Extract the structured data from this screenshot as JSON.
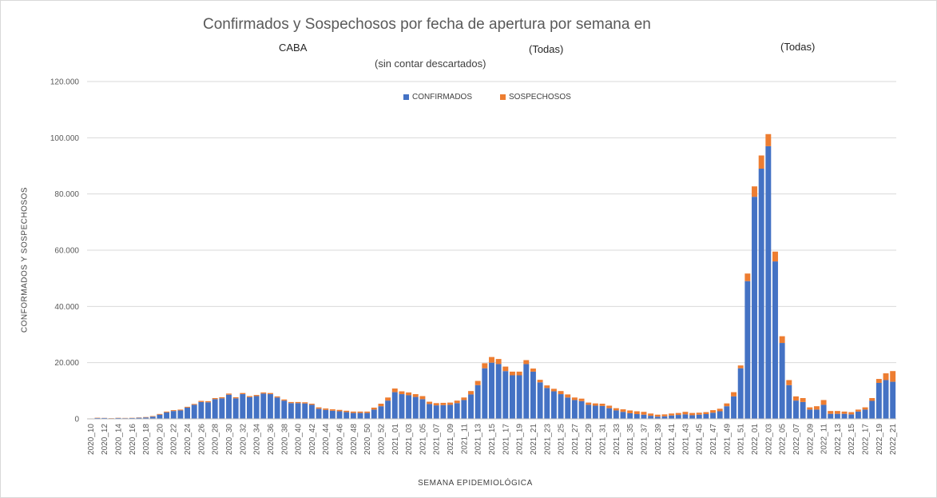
{
  "chart_data": {
    "type": "bar",
    "stacked": true,
    "title": "Confirmados y Sospechosos por fecha de apertura por semana en",
    "subtitles": [
      "CABA",
      "(sin contar descartados)",
      "(Todas)",
      "(Todas)"
    ],
    "xlabel": "SEMANA  EPIDEMIOLÓGICA",
    "ylabel": "CONFORMADOS  Y SOSPECHOSOS",
    "ylim": [
      0,
      120000
    ],
    "yticks": [
      "0",
      "20.000",
      "40.000",
      "60.000",
      "80.000",
      "100.000",
      "120.000"
    ],
    "grid": true,
    "legend_position": "top",
    "colors": {
      "confirmados": "#4472c4",
      "sospechosos": "#ed7d31"
    },
    "categories": [
      "2020_10",
      "2020_11",
      "2020_12",
      "2020_13",
      "2020_14",
      "2020_15",
      "2020_16",
      "2020_17",
      "2020_18",
      "2020_19",
      "2020_20",
      "2020_21",
      "2020_22",
      "2020_23",
      "2020_24",
      "2020_25",
      "2020_26",
      "2020_27",
      "2020_28",
      "2020_29",
      "2020_30",
      "2020_31",
      "2020_32",
      "2020_33",
      "2020_34",
      "2020_35",
      "2020_36",
      "2020_37",
      "2020_38",
      "2020_39",
      "2020_40",
      "2020_41",
      "2020_42",
      "2020_43",
      "2020_44",
      "2020_45",
      "2020_46",
      "2020_47",
      "2020_48",
      "2020_49",
      "2020_50",
      "2020_51",
      "2020_52",
      "2020_53",
      "2021_01",
      "2021_02",
      "2021_03",
      "2021_04",
      "2021_05",
      "2021_06",
      "2021_07",
      "2021_08",
      "2021_09",
      "2021_10",
      "2021_11",
      "2021_12",
      "2021_13",
      "2021_14",
      "2021_15",
      "2021_16",
      "2021_17",
      "2021_18",
      "2021_19",
      "2021_20",
      "2021_21",
      "2021_22",
      "2021_23",
      "2021_24",
      "2021_25",
      "2021_26",
      "2021_27",
      "2021_28",
      "2021_29",
      "2021_30",
      "2021_31",
      "2021_32",
      "2021_33",
      "2021_34",
      "2021_35",
      "2021_36",
      "2021_37",
      "2021_38",
      "2021_39",
      "2021_40",
      "2021_41",
      "2021_42",
      "2021_43",
      "2021_44",
      "2021_45",
      "2021_46",
      "2021_47",
      "2021_48",
      "2021_49",
      "2021_50",
      "2021_51",
      "2021_52",
      "2022_01",
      "2022_02",
      "2022_03",
      "2022_04",
      "2022_05",
      "2022_06",
      "2022_07",
      "2022_08",
      "2022_09",
      "2022_10",
      "2022_11",
      "2022_12",
      "2022_13",
      "2022_14",
      "2022_15",
      "2022_16",
      "2022_17",
      "2022_18",
      "2022_19",
      "2022_20",
      "2022_21"
    ],
    "x_tick_labels": [
      "2020_10",
      "2020_12",
      "2020_14",
      "2020_16",
      "2020_18",
      "2020_20",
      "2020_22",
      "2020_24",
      "2020_26",
      "2020_28",
      "2020_30",
      "2020_32",
      "2020_34",
      "2020_36",
      "2020_38",
      "2020_40",
      "2020_42",
      "2020_44",
      "2020_46",
      "2020_48",
      "2020_50",
      "2020_52",
      "2021_01",
      "2021_03",
      "2021_05",
      "2021_07",
      "2021_09",
      "2021_11",
      "2021_13",
      "2021_15",
      "2021_17",
      "2021_19",
      "2021_21",
      "2021_23",
      "2021_25",
      "2021_27",
      "2021_29",
      "2021_31",
      "2021_33",
      "2021_35",
      "2021_37",
      "2021_39",
      "2021_41",
      "2021_43",
      "2021_45",
      "2021_47",
      "2021_49",
      "2021_51",
      "2022_01",
      "2022_03",
      "2022_05",
      "2022_07",
      "2022_09",
      "2022_11",
      "2022_13",
      "2022_15",
      "2022_17",
      "2022_19",
      "2022_21"
    ],
    "series": [
      {
        "name": "CONFIRMADOS",
        "values": [
          100,
          300,
          300,
          200,
          300,
          250,
          300,
          400,
          500,
          800,
          1500,
          2300,
          2800,
          3000,
          4000,
          5000,
          6000,
          5900,
          7000,
          7300,
          8600,
          7300,
          8800,
          7700,
          8100,
          9000,
          8800,
          7600,
          6500,
          5600,
          5600,
          5500,
          5000,
          3600,
          3200,
          2900,
          2700,
          2400,
          2100,
          2100,
          2100,
          3300,
          4500,
          6500,
          9500,
          8800,
          8400,
          7800,
          7000,
          5300,
          4800,
          4900,
          5000,
          5600,
          6700,
          8700,
          12000,
          18000,
          20000,
          19500,
          17000,
          15500,
          15500,
          19500,
          16800,
          13000,
          11000,
          9800,
          8800,
          7600,
          6700,
          6300,
          5000,
          4700,
          4600,
          3800,
          3000,
          2500,
          2000,
          1700,
          1500,
          1100,
          800,
          900,
          1200,
          1400,
          1600,
          1300,
          1500,
          1700,
          2200,
          2700,
          4500,
          8000,
          18000,
          49000,
          79000,
          89000,
          97000,
          56000,
          27000,
          12000,
          6500,
          6000,
          3300,
          3300,
          5000,
          1800,
          1800,
          1800,
          1600,
          2600,
          3300,
          6400,
          12800,
          13800,
          13200
        ]
      },
      {
        "name": "SOSPECHOSOS",
        "values": [
          50,
          100,
          50,
          80,
          80,
          80,
          80,
          100,
          150,
          200,
          250,
          300,
          300,
          300,
          300,
          300,
          400,
          400,
          400,
          400,
          400,
          400,
          400,
          400,
          400,
          400,
          400,
          400,
          400,
          400,
          400,
          400,
          400,
          500,
          500,
          500,
          500,
          500,
          500,
          500,
          500,
          700,
          900,
          1100,
          1300,
          1000,
          1000,
          1000,
          1100,
          800,
          800,
          800,
          800,
          900,
          900,
          1200,
          1500,
          1800,
          2000,
          1800,
          1600,
          1300,
          1300,
          1400,
          1100,
          900,
          900,
          900,
          1100,
          1100,
          900,
          900,
          800,
          800,
          800,
          900,
          800,
          900,
          1000,
          1000,
          1000,
          800,
          700,
          700,
          700,
          700,
          900,
          800,
          700,
          700,
          900,
          900,
          1000,
          1500,
          1000,
          2700,
          3700,
          4700,
          4300,
          3500,
          2400,
          1800,
          1500,
          1400,
          800,
          1200,
          1700,
          1000,
          1000,
          800,
          800,
          700,
          800,
          1000,
          1400,
          2400,
          3800
        ]
      }
    ]
  }
}
